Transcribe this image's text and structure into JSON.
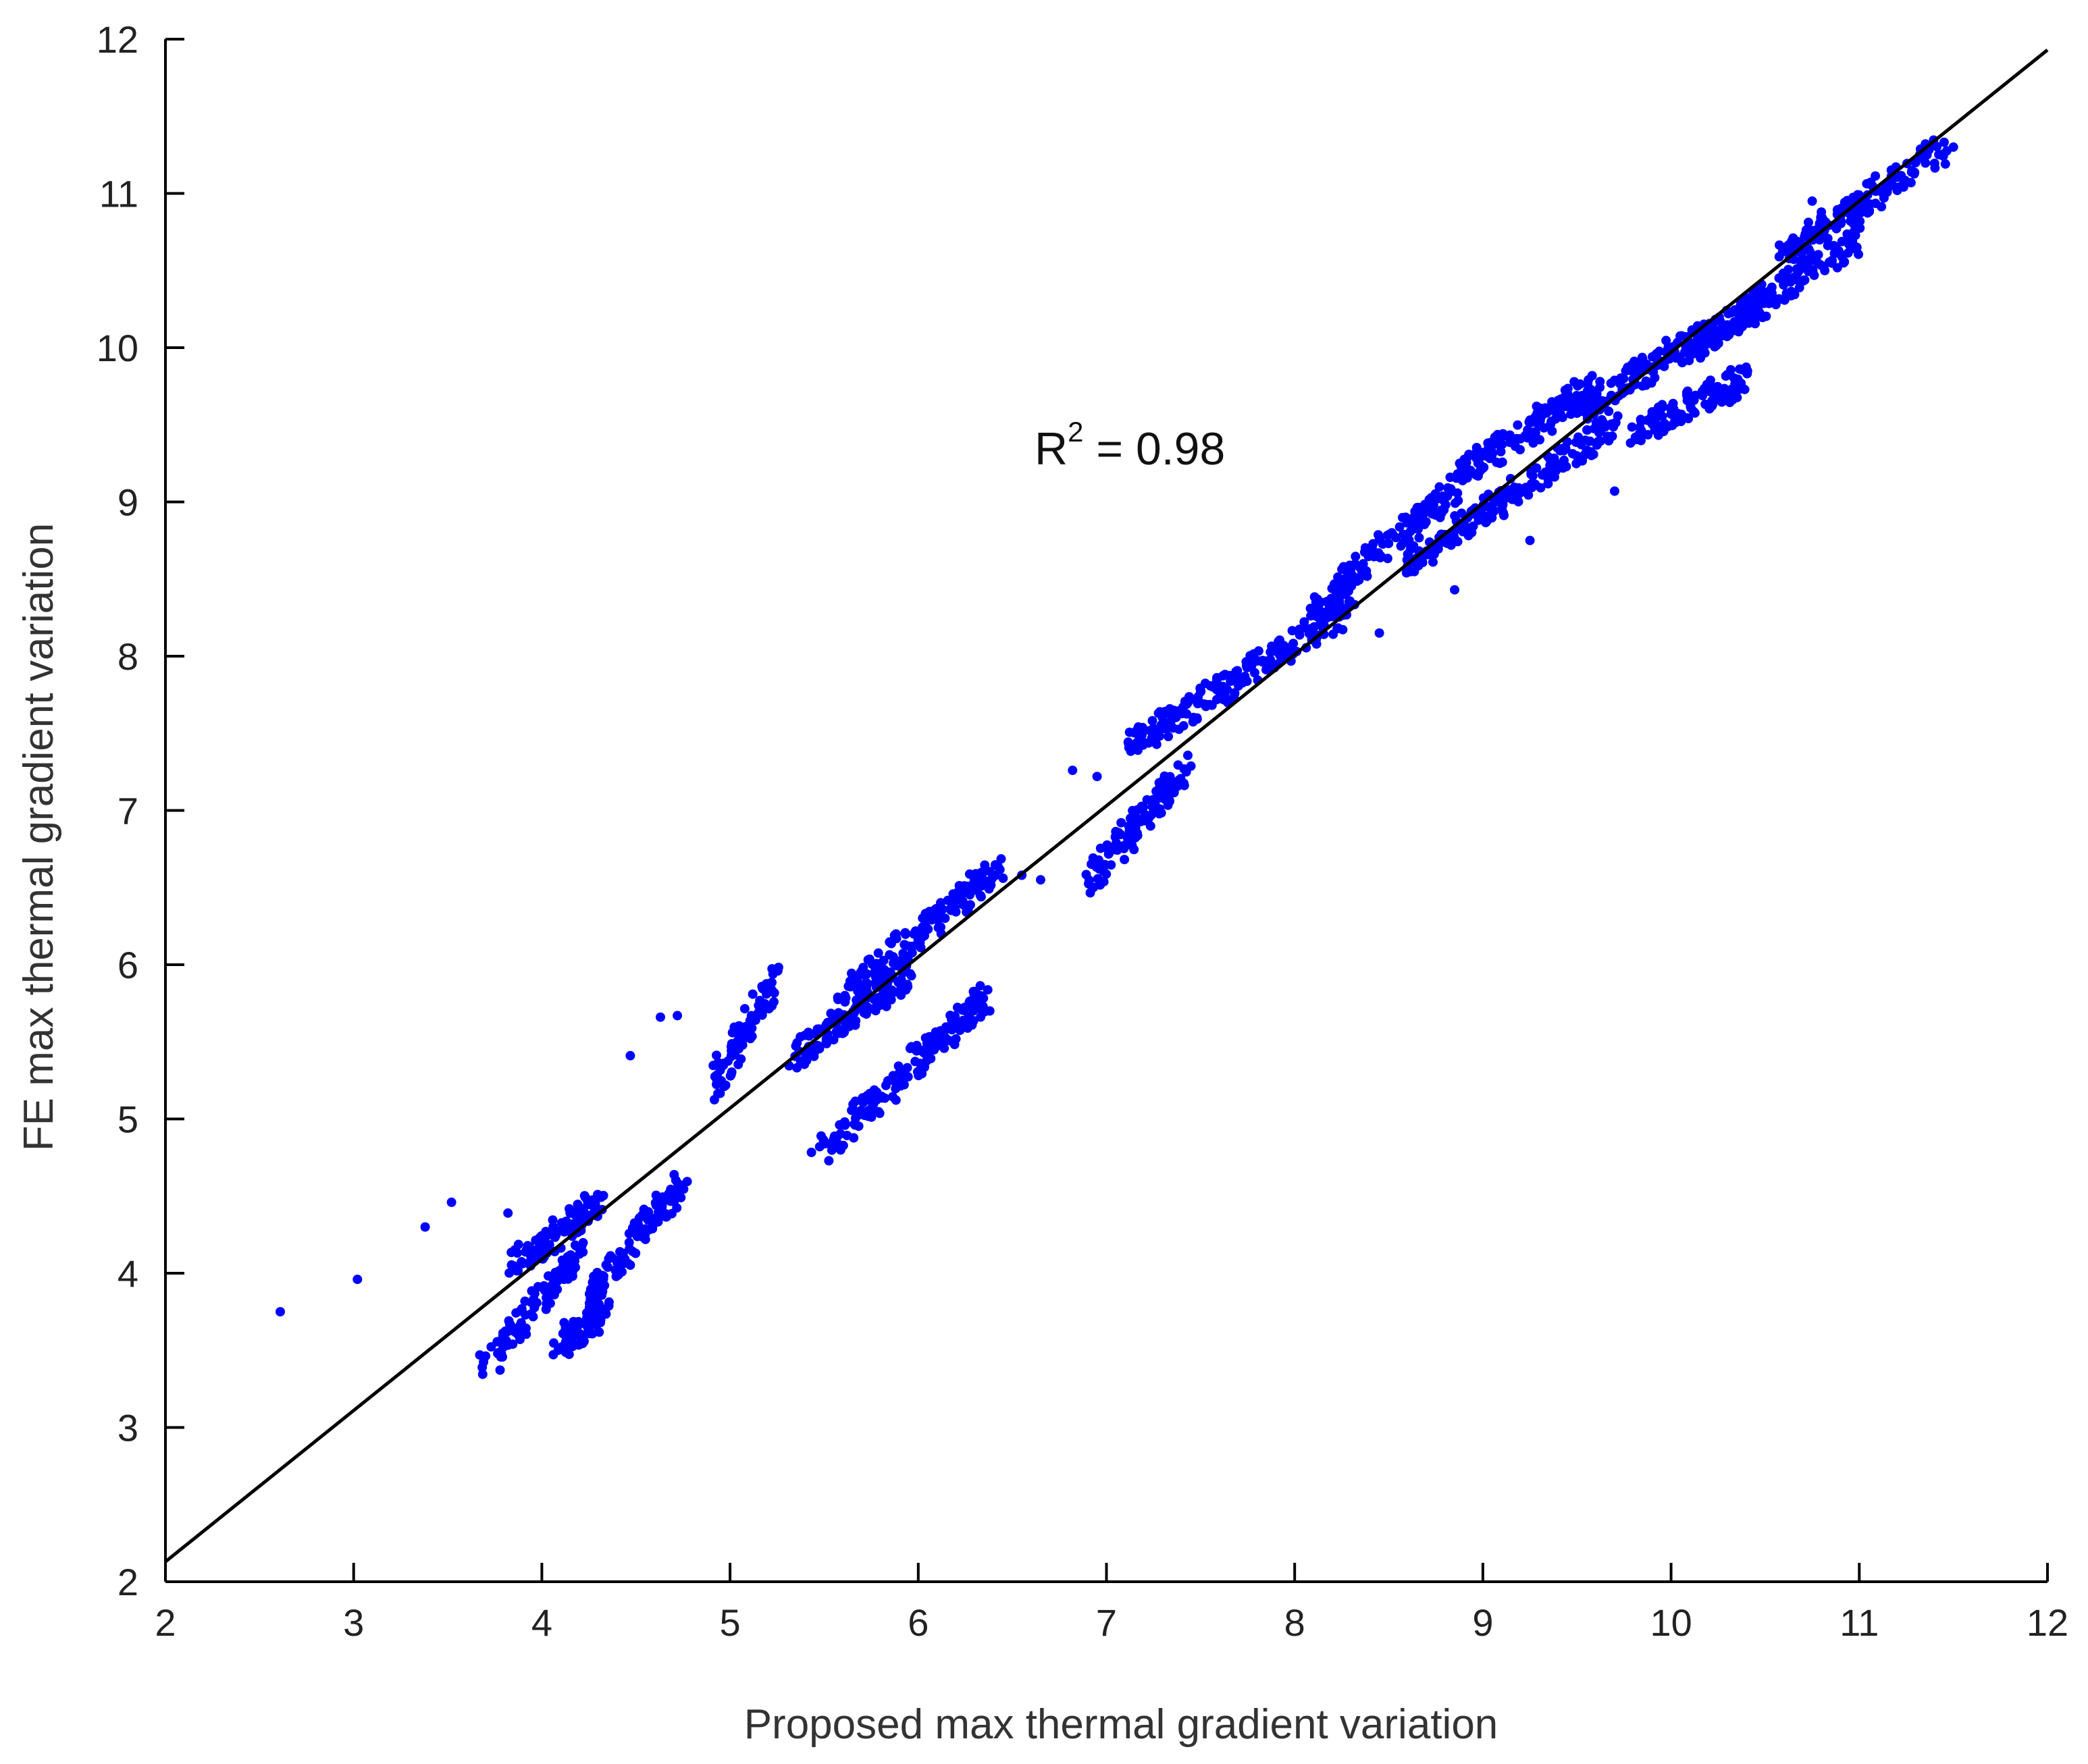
{
  "chart_data": {
    "type": "scatter",
    "title": "",
    "xlabel": "Proposed max thermal gradient variation",
    "ylabel": "FE max thermal gradient variation",
    "xlim": [
      2,
      12
    ],
    "ylim": [
      2,
      12
    ],
    "xticks": [
      2,
      3,
      4,
      5,
      6,
      7,
      8,
      9,
      10,
      11,
      12
    ],
    "yticks": [
      2,
      3,
      4,
      5,
      6,
      7,
      8,
      9,
      10,
      11,
      12
    ],
    "xtick_labels": [
      "2",
      "3",
      "4",
      "5",
      "6",
      "7",
      "8",
      "9",
      "10",
      "11",
      "12"
    ],
    "ytick_labels": [
      "2",
      "3",
      "4",
      "5",
      "6",
      "7",
      "8",
      "9",
      "10",
      "11",
      "12"
    ],
    "grid": false,
    "legend": "none",
    "marker_color": "#0000ff",
    "line_color": "#000000",
    "annotation": {
      "base": "R",
      "sup": "2",
      "rest": " = 0.98"
    },
    "fit_line": {
      "x": [
        2,
        12
      ],
      "y": [
        2.13,
        11.93
      ]
    },
    "clusters": [
      {
        "x_range": [
          3.7,
          4.2
        ],
        "y_range": [
          3.38,
          4.15
        ]
      },
      {
        "x_range": [
          3.85,
          4.3
        ],
        "y_range": [
          4.05,
          4.45
        ]
      },
      {
        "x_range": [
          4.1,
          4.35
        ],
        "y_range": [
          3.55,
          3.75
        ]
      },
      {
        "x_range": [
          4.25,
          4.75
        ],
        "y_range": [
          3.85,
          4.6
        ]
      },
      {
        "x_range": [
          4.9,
          5.25
        ],
        "y_range": [
          5.2,
          5.92
        ]
      },
      {
        "x_range": [
          5.35,
          5.95
        ],
        "y_range": [
          5.4,
          5.95
        ]
      },
      {
        "x_range": [
          5.6,
          6.45
        ],
        "y_range": [
          5.8,
          6.65
        ]
      },
      {
        "x_range": [
          5.45,
          6.35
        ],
        "y_range": [
          4.75,
          5.8
        ]
      },
      {
        "x_range": [
          6.9,
          7.45
        ],
        "y_range": [
          6.55,
          7.3
        ]
      },
      {
        "x_range": [
          7.1,
          8.3
        ],
        "y_range": [
          7.4,
          8.3
        ]
      },
      {
        "x_range": [
          8.1,
          8.9
        ],
        "y_range": [
          8.3,
          9.15
        ]
      },
      {
        "x_range": [
          8.6,
          9.7
        ],
        "y_range": [
          8.6,
          9.5
        ]
      },
      {
        "x_range": [
          8.9,
          9.6
        ],
        "y_range": [
          9.2,
          9.75
        ]
      },
      {
        "x_range": [
          9.5,
          10.5
        ],
        "y_range": [
          9.6,
          10.3
        ]
      },
      {
        "x_range": [
          9.8,
          10.4
        ],
        "y_range": [
          9.45,
          9.8
        ]
      },
      {
        "x_range": [
          10.1,
          11.0
        ],
        "y_range": [
          10.0,
          10.7
        ]
      },
      {
        "x_range": [
          10.6,
          11.45
        ],
        "y_range": [
          10.6,
          11.3
        ]
      }
    ],
    "outliers": [
      {
        "x": 2.61,
        "y": 3.75
      },
      {
        "x": 3.02,
        "y": 3.96
      },
      {
        "x": 3.38,
        "y": 4.3
      },
      {
        "x": 3.52,
        "y": 4.46
      },
      {
        "x": 3.82,
        "y": 4.39
      },
      {
        "x": 4.47,
        "y": 5.41
      },
      {
        "x": 4.63,
        "y": 5.66
      },
      {
        "x": 4.72,
        "y": 5.67
      },
      {
        "x": 6.38,
        "y": 5.7
      },
      {
        "x": 6.55,
        "y": 6.58
      },
      {
        "x": 6.65,
        "y": 6.55
      },
      {
        "x": 6.82,
        "y": 7.26
      },
      {
        "x": 6.95,
        "y": 7.22
      },
      {
        "x": 8.45,
        "y": 8.15
      },
      {
        "x": 8.85,
        "y": 8.43
      },
      {
        "x": 9.25,
        "y": 8.75
      },
      {
        "x": 9.7,
        "y": 9.07
      },
      {
        "x": 10.32,
        "y": 9.72
      },
      {
        "x": 10.75,
        "y": 10.95
      },
      {
        "x": 11.5,
        "y": 11.3
      }
    ]
  }
}
